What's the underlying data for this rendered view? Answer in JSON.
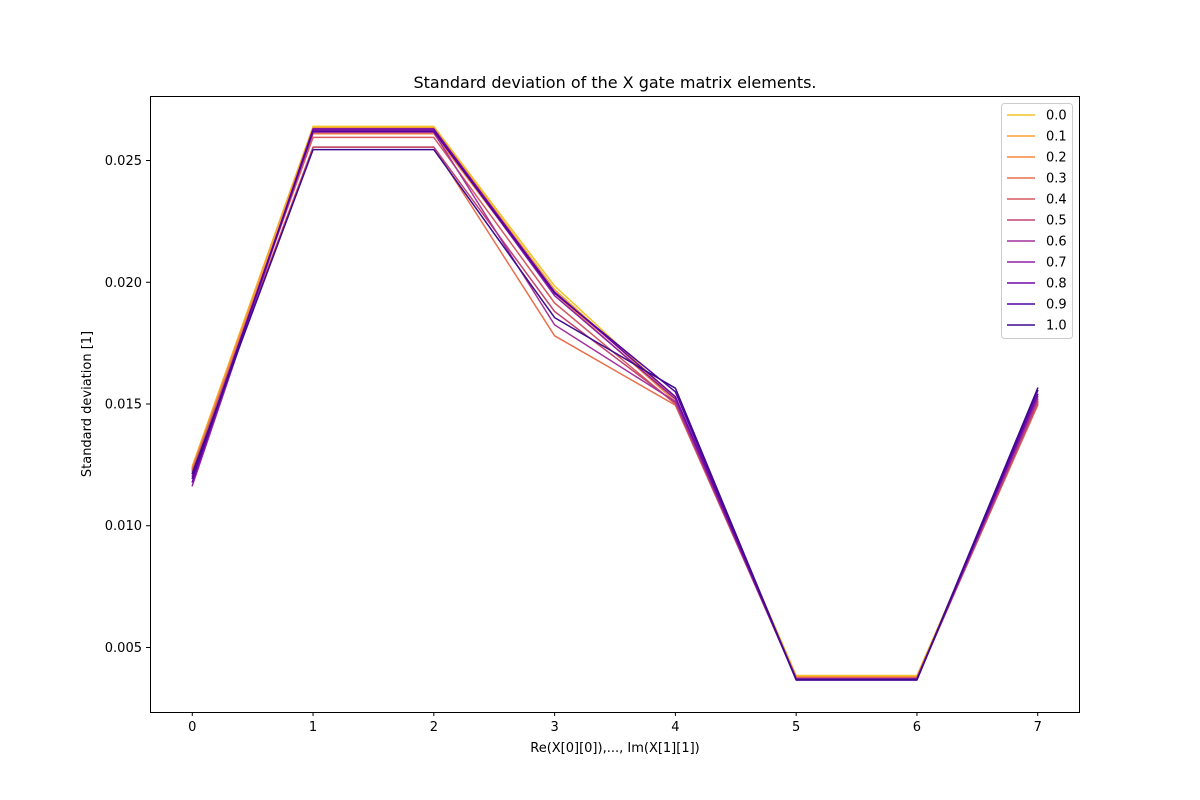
{
  "chart_data": {
    "type": "line",
    "title": "Standard deviation of the X gate matrix elements.",
    "xlabel": "Re(X[0][0]),..., Im(X[1][1])",
    "ylabel": "Standard deviation [1]",
    "x": [
      0,
      1,
      2,
      3,
      4,
      5,
      6,
      7
    ],
    "xticks": [
      0,
      1,
      2,
      3,
      4,
      5,
      6,
      7
    ],
    "xtick_labels": [
      "0",
      "1",
      "2",
      "3",
      "4",
      "5",
      "6",
      "7"
    ],
    "xlim": [
      -0.35,
      7.35
    ],
    "yticks": [
      0.005,
      0.01,
      0.015,
      0.02,
      0.025
    ],
    "ytick_labels": [
      "0.005",
      "0.010",
      "0.015",
      "0.020",
      "0.025"
    ],
    "ylim": [
      0.00235,
      0.02765
    ],
    "grid": false,
    "legend_position": "top-right",
    "series": [
      {
        "name": "0.0",
        "color": "#f0c42a",
        "values": [
          0.01245,
          0.0264,
          0.0264,
          0.01985,
          0.01525,
          0.00385,
          0.00385,
          0.0152
        ]
      },
      {
        "name": "0.1",
        "color": "#f9a132",
        "values": [
          0.0124,
          0.02635,
          0.02635,
          0.0197,
          0.0152,
          0.0038,
          0.0038,
          0.01515
        ]
      },
      {
        "name": "0.2",
        "color": "#f5873f",
        "values": [
          0.01235,
          0.0261,
          0.0261,
          0.01955,
          0.0151,
          0.00378,
          0.00378,
          0.01505
        ]
      },
      {
        "name": "0.3",
        "color": "#e8704e",
        "values": [
          0.0123,
          0.02555,
          0.02555,
          0.0178,
          0.01495,
          0.00375,
          0.00375,
          0.01495
        ]
      },
      {
        "name": "0.4",
        "color": "#d65a5f",
        "values": [
          0.01225,
          0.02595,
          0.02595,
          0.01915,
          0.015,
          0.00372,
          0.00372,
          0.015
        ]
      },
      {
        "name": "0.5",
        "color": "#c0466e",
        "values": [
          0.01215,
          0.02555,
          0.02555,
          0.0188,
          0.01505,
          0.00372,
          0.00372,
          0.0151
        ]
      },
      {
        "name": "0.6",
        "color": "#a4329b",
        "values": [
          0.01205,
          0.02615,
          0.02615,
          0.01825,
          0.0151,
          0.0037,
          0.0037,
          0.0152
        ]
      },
      {
        "name": "0.7",
        "color": "#8f20a6",
        "values": [
          0.01165,
          0.02625,
          0.02625,
          0.01945,
          0.0152,
          0.00372,
          0.00372,
          0.0153
        ]
      },
      {
        "name": "0.8",
        "color": "#7009a5",
        "values": [
          0.0118,
          0.0263,
          0.0263,
          0.0196,
          0.0153,
          0.00368,
          0.00368,
          0.0154
        ]
      },
      {
        "name": "0.9",
        "color": "#5304a0",
        "values": [
          0.01195,
          0.0262,
          0.0262,
          0.01955,
          0.0155,
          0.00366,
          0.00366,
          0.01555
        ]
      },
      {
        "name": "1.0",
        "color": "#3e0b8f",
        "values": [
          0.01215,
          0.02545,
          0.02545,
          0.01855,
          0.01565,
          0.00368,
          0.00368,
          0.01565
        ]
      }
    ]
  }
}
